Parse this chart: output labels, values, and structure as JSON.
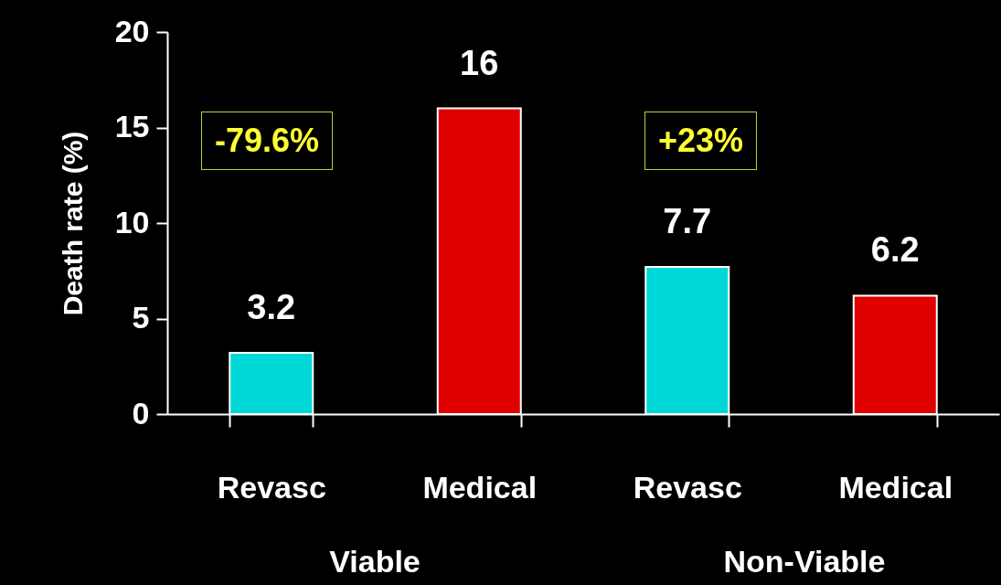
{
  "chart_data": {
    "type": "bar",
    "ylabel": "Death rate (%)",
    "categories": [
      "Revasc",
      "Medical",
      "Revasc",
      "Medical"
    ],
    "values": [
      3.2,
      16,
      7.7,
      6.2
    ],
    "colors": [
      "#00d8d8",
      "#e00000",
      "#00d8d8",
      "#e00000"
    ],
    "ylim": [
      0,
      20
    ],
    "yticks": [
      0,
      5,
      10,
      15,
      20
    ],
    "data_labels": true,
    "annotations": [
      "-79.6%",
      "+23%",
      "Viable",
      "Non-Viable"
    ]
  }
}
